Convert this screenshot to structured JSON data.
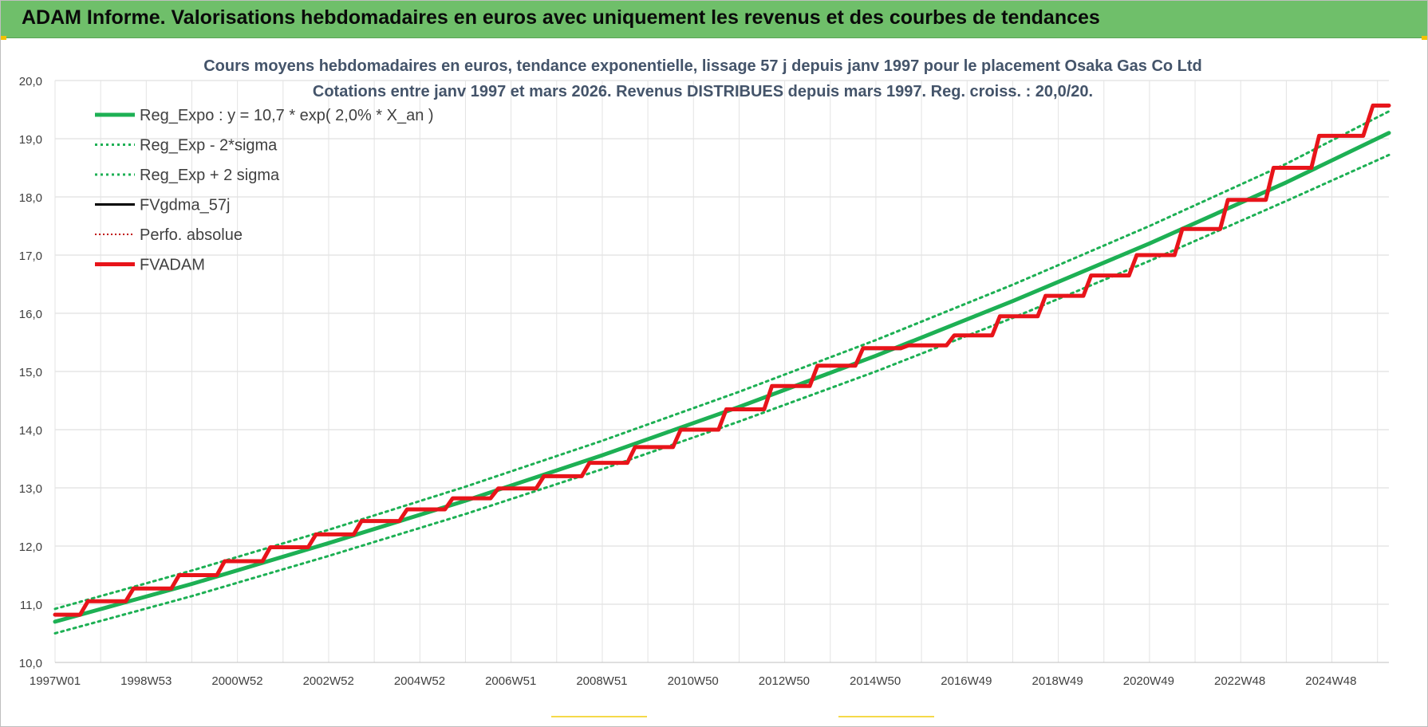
{
  "banner": {
    "title": "ADAM Informe. Valorisations hebdomadaires en euros avec uniquement les revenus et des courbes de tendances"
  },
  "colors": {
    "banner_bg": "#6fbf6a",
    "reg_expo": "#1db054",
    "fvgdma": "#000000",
    "fvadam": "#e8141a",
    "perfo": "#c00000"
  },
  "chart_data": {
    "type": "line",
    "title_line1": "Cours moyens hebdomadaires en euros, tendance exponentielle, lissage 57 j depuis janv 1997  pour le placement Osaka Gas Co Ltd",
    "title_line2": "Cotations entre janv 1997 et mars 2026. Revenus DISTRIBUES depuis mars 1997. Reg. croiss. : 20,0/20.",
    "xlabel": "",
    "ylabel": "",
    "ylim": [
      10.0,
      20.0
    ],
    "y_ticks": [
      "10,0",
      "11,0",
      "12,0",
      "13,0",
      "14,0",
      "15,0",
      "16,0",
      "17,0",
      "18,0",
      "19,0",
      "20,0"
    ],
    "x_range": [
      1997.0,
      2026.25
    ],
    "x_ticks": [
      "1997W01",
      "1998W53",
      "2000W52",
      "2002W52",
      "2004W52",
      "2006W51",
      "2008W51",
      "2010W50",
      "2012W50",
      "2014W50",
      "2016W49",
      "2018W49",
      "2020W49",
      "2022W48",
      "2024W48"
    ],
    "grid": true,
    "legend_position": "top-left",
    "legend": [
      "Reg_Expo : y = 10,7 * exp( 2,0% *  X_an )",
      "Reg_Exp - 2*sigma",
      "Reg_Exp + 2 sigma",
      "FVgdma_57j",
      "Perfo. absolue",
      "FVADAM"
    ],
    "series": [
      {
        "name": "Reg_Expo : y = 10,7 * exp( 2,0% *  X_an )",
        "style": "solid",
        "x": [
          1997.0,
          2000.0,
          2003.0,
          2006.0,
          2009.0,
          2012.0,
          2015.0,
          2018.0,
          2021.0,
          2024.0,
          2026.25
        ],
        "y": [
          10.7,
          11.35,
          12.05,
          12.78,
          13.56,
          14.39,
          15.27,
          16.21,
          17.2,
          18.25,
          19.1
        ]
      },
      {
        "name": "Reg_Exp - 2*sigma",
        "style": "dotted",
        "x": [
          1997.0,
          2000.0,
          2003.0,
          2006.0,
          2009.0,
          2012.0,
          2015.0,
          2018.0,
          2021.0,
          2024.0,
          2026.25
        ],
        "y": [
          10.5,
          11.14,
          11.83,
          12.55,
          13.32,
          14.14,
          15.0,
          15.92,
          16.9,
          17.93,
          18.72
        ]
      },
      {
        "name": "Reg_Exp + 2 sigma",
        "style": "dotted",
        "x": [
          1997.0,
          2000.0,
          2003.0,
          2006.0,
          2009.0,
          2012.0,
          2015.0,
          2018.0,
          2021.0,
          2024.0,
          2026.25
        ],
        "y": [
          10.92,
          11.58,
          12.28,
          13.02,
          13.81,
          14.65,
          15.54,
          16.49,
          17.5,
          18.57,
          19.47
        ]
      },
      {
        "name": "FVgdma_57j",
        "style": "solid",
        "x": [
          1997.0,
          1998.0,
          1999.0,
          2000.0,
          2001.0,
          2002.0,
          2003.0,
          2004.0,
          2005.0,
          2006.0,
          2007.0,
          2008.0,
          2009.0,
          2010.0,
          2011.0,
          2012.0,
          2013.0,
          2014.0,
          2015.0,
          2016.0,
          2017.0,
          2018.0,
          2019.0,
          2020.0,
          2021.0,
          2022.0,
          2023.0,
          2024.0,
          2025.0,
          2026.25
        ],
        "y": [
          10.83,
          11.05,
          11.27,
          11.5,
          11.74,
          11.98,
          12.2,
          12.43,
          12.63,
          12.82,
          12.99,
          13.2,
          13.43,
          13.7,
          14.0,
          14.35,
          14.75,
          15.1,
          15.38,
          15.45,
          15.62,
          15.95,
          16.3,
          16.65,
          17.0,
          17.45,
          17.95,
          18.5,
          19.05,
          19.55
        ]
      },
      {
        "name": "FVADAM",
        "style": "solid",
        "x": [
          1997.0,
          1998.0,
          1999.0,
          2000.0,
          2001.0,
          2002.0,
          2003.0,
          2004.0,
          2005.0,
          2006.0,
          2007.0,
          2008.0,
          2009.0,
          2010.0,
          2011.0,
          2012.0,
          2013.0,
          2014.0,
          2015.0,
          2016.0,
          2017.0,
          2018.0,
          2019.0,
          2020.0,
          2021.0,
          2022.0,
          2023.0,
          2024.0,
          2025.0,
          2026.25
        ],
        "y": [
          10.82,
          11.05,
          11.27,
          11.5,
          11.74,
          11.98,
          12.2,
          12.43,
          12.63,
          12.82,
          12.99,
          13.2,
          13.43,
          13.7,
          14.0,
          14.35,
          14.75,
          15.1,
          15.4,
          15.45,
          15.62,
          15.95,
          16.3,
          16.65,
          17.0,
          17.45,
          17.95,
          18.5,
          19.05,
          19.57
        ]
      }
    ]
  }
}
